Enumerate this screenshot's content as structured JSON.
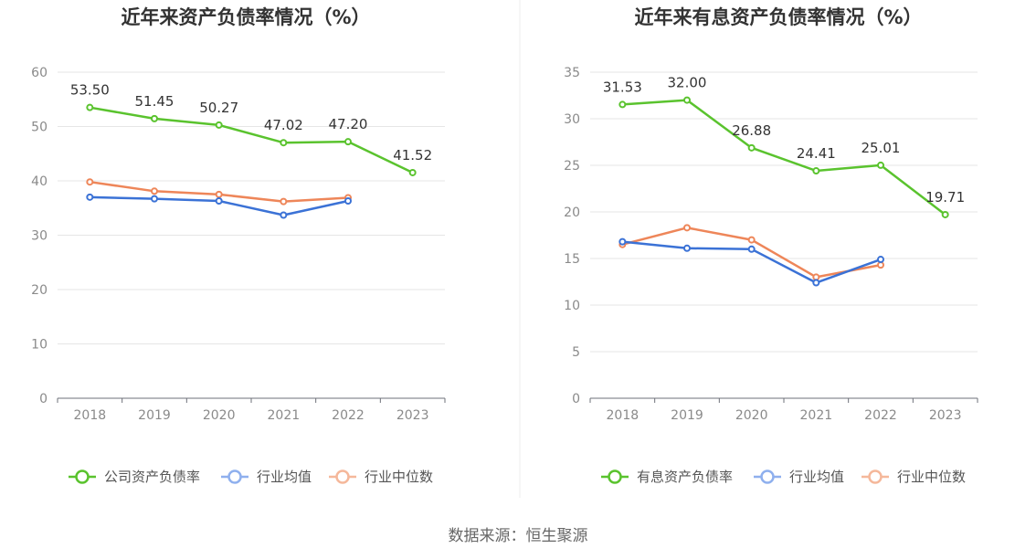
{
  "source": "数据来源：恒生聚源",
  "chart_data": [
    {
      "type": "line",
      "title": "近年来资产负债率情况（%）",
      "categories": [
        "2018",
        "2019",
        "2020",
        "2021",
        "2022",
        "2023"
      ],
      "ylim": [
        0,
        60
      ],
      "yticks": [
        0,
        10,
        20,
        30,
        40,
        50,
        60
      ],
      "grid": true,
      "legend_position": "bottom",
      "series": [
        {
          "name": "公司资产负债率",
          "color": "#5ac32e",
          "values": [
            53.5,
            51.45,
            50.27,
            47.02,
            47.2,
            41.52
          ],
          "labels": [
            "53.50",
            "51.45",
            "50.27",
            "47.02",
            "47.20",
            "41.52"
          ]
        },
        {
          "name": "行业均值",
          "color": "#3b72d6",
          "values": [
            37.0,
            36.7,
            36.3,
            33.7,
            36.3,
            null
          ]
        },
        {
          "name": "行业中位数",
          "color": "#ee8659",
          "values": [
            39.8,
            38.1,
            37.5,
            36.2,
            36.9,
            null
          ]
        }
      ]
    },
    {
      "type": "line",
      "title": "近年来有息资产负债率情况（%）",
      "categories": [
        "2018",
        "2019",
        "2020",
        "2021",
        "2022",
        "2023"
      ],
      "ylim": [
        0,
        35
      ],
      "yticks": [
        0,
        5,
        10,
        15,
        20,
        25,
        30,
        35
      ],
      "grid": true,
      "legend_position": "bottom",
      "series": [
        {
          "name": "有息资产负债率",
          "color": "#5ac32e",
          "values": [
            31.53,
            32.0,
            26.88,
            24.41,
            25.01,
            19.71
          ],
          "labels": [
            "31.53",
            "32.00",
            "26.88",
            "24.41",
            "25.01",
            "19.71"
          ]
        },
        {
          "name": "行业均值",
          "color": "#3b72d6",
          "values": [
            16.8,
            16.1,
            16.0,
            12.4,
            14.9,
            null
          ]
        },
        {
          "name": "行业中位数",
          "color": "#ee8659",
          "values": [
            16.5,
            18.3,
            17.0,
            13.0,
            14.3,
            null
          ]
        }
      ]
    }
  ]
}
